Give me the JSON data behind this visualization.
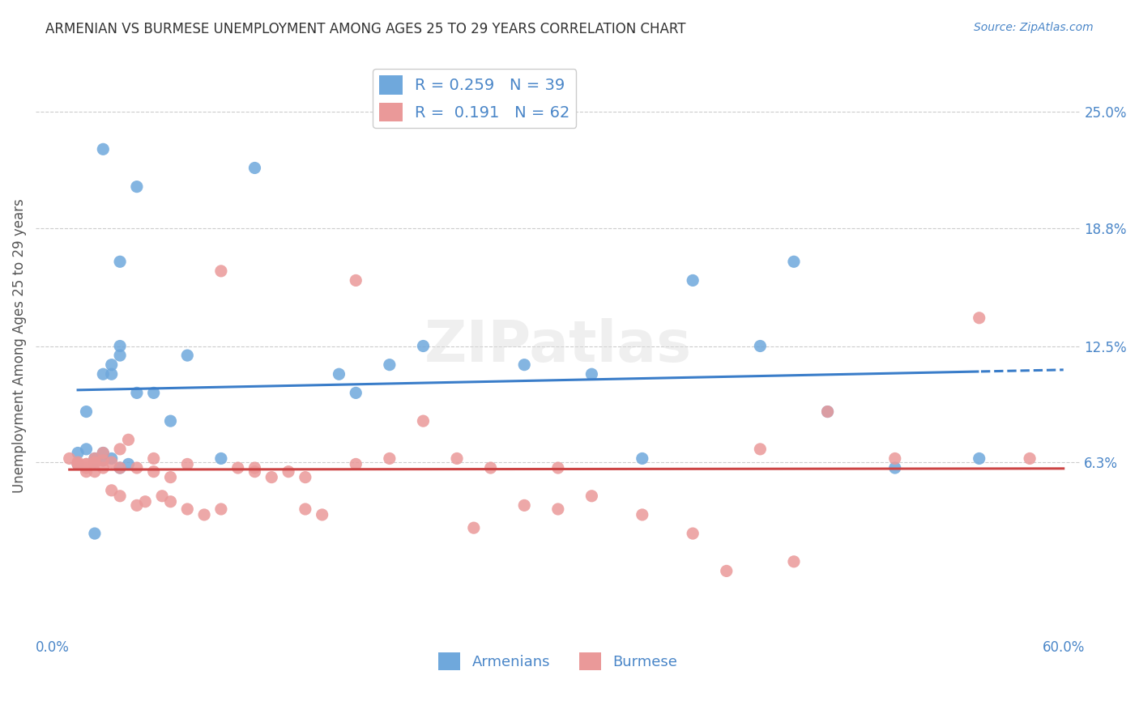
{
  "title": "ARMENIAN VS BURMESE UNEMPLOYMENT AMONG AGES 25 TO 29 YEARS CORRELATION CHART",
  "source": "Source: ZipAtlas.com",
  "ylabel": "Unemployment Among Ages 25 to 29 years",
  "xlim": [
    0.0,
    0.6
  ],
  "ylim": [
    -0.03,
    0.28
  ],
  "yticks": [
    0.063,
    0.125,
    0.188,
    0.25
  ],
  "ytick_labels": [
    "6.3%",
    "12.5%",
    "18.8%",
    "25.0%"
  ],
  "xticks": [
    0.0,
    0.1,
    0.2,
    0.3,
    0.4,
    0.5,
    0.6
  ],
  "xtick_labels": [
    "0.0%",
    "",
    "",
    "",
    "",
    "",
    "60.0%"
  ],
  "armenian_color": "#6fa8dc",
  "burmese_color": "#ea9999",
  "trendline_armenian_color": "#3a7dc9",
  "trendline_burmese_color": "#cc4444",
  "text_color": "#4a86c8",
  "background_color": "#ffffff",
  "grid_color": "#cccccc",
  "armenian_r": 0.259,
  "armenian_n": 39,
  "burmese_r": 0.191,
  "burmese_n": 62,
  "armenian_x": [
    0.02,
    0.04,
    0.03,
    0.04,
    0.035,
    0.02,
    0.025,
    0.03,
    0.05,
    0.035,
    0.04,
    0.06,
    0.08,
    0.07,
    0.1,
    0.12,
    0.17,
    0.18,
    0.2,
    0.22,
    0.28,
    0.32,
    0.38,
    0.42,
    0.44,
    0.46,
    0.5,
    0.035,
    0.025,
    0.015,
    0.015,
    0.025,
    0.03,
    0.04,
    0.045,
    0.05,
    0.55,
    0.03,
    0.35
  ],
  "armenian_y": [
    0.09,
    0.17,
    0.11,
    0.125,
    0.115,
    0.07,
    0.065,
    0.068,
    0.1,
    0.11,
    0.12,
    0.1,
    0.12,
    0.085,
    0.065,
    0.22,
    0.11,
    0.1,
    0.115,
    0.125,
    0.115,
    0.11,
    0.16,
    0.125,
    0.17,
    0.09,
    0.06,
    0.065,
    0.025,
    0.068,
    0.062,
    0.063,
    0.064,
    0.06,
    0.062,
    0.21,
    0.065,
    0.23,
    0.065
  ],
  "burmese_x": [
    0.01,
    0.015,
    0.02,
    0.025,
    0.015,
    0.02,
    0.025,
    0.03,
    0.035,
    0.04,
    0.02,
    0.025,
    0.03,
    0.04,
    0.05,
    0.06,
    0.07,
    0.08,
    0.09,
    0.1,
    0.11,
    0.12,
    0.13,
    0.14,
    0.15,
    0.16,
    0.18,
    0.2,
    0.22,
    0.24,
    0.26,
    0.28,
    0.3,
    0.32,
    0.35,
    0.38,
    0.4,
    0.42,
    0.44,
    0.46,
    0.5,
    0.55,
    0.58,
    0.015,
    0.02,
    0.025,
    0.03,
    0.035,
    0.04,
    0.045,
    0.05,
    0.055,
    0.06,
    0.065,
    0.07,
    0.08,
    0.1,
    0.12,
    0.15,
    0.18,
    0.25,
    0.3
  ],
  "burmese_y": [
    0.065,
    0.062,
    0.06,
    0.058,
    0.063,
    0.062,
    0.065,
    0.064,
    0.063,
    0.06,
    0.062,
    0.063,
    0.068,
    0.07,
    0.06,
    0.065,
    0.055,
    0.038,
    0.035,
    0.038,
    0.06,
    0.06,
    0.055,
    0.058,
    0.038,
    0.035,
    0.062,
    0.065,
    0.085,
    0.065,
    0.06,
    0.04,
    0.038,
    0.045,
    0.035,
    0.025,
    0.005,
    0.07,
    0.01,
    0.09,
    0.065,
    0.14,
    0.065,
    0.062,
    0.058,
    0.063,
    0.06,
    0.048,
    0.045,
    0.075,
    0.04,
    0.042,
    0.058,
    0.045,
    0.042,
    0.062,
    0.165,
    0.058,
    0.055,
    0.16,
    0.028,
    0.06
  ]
}
